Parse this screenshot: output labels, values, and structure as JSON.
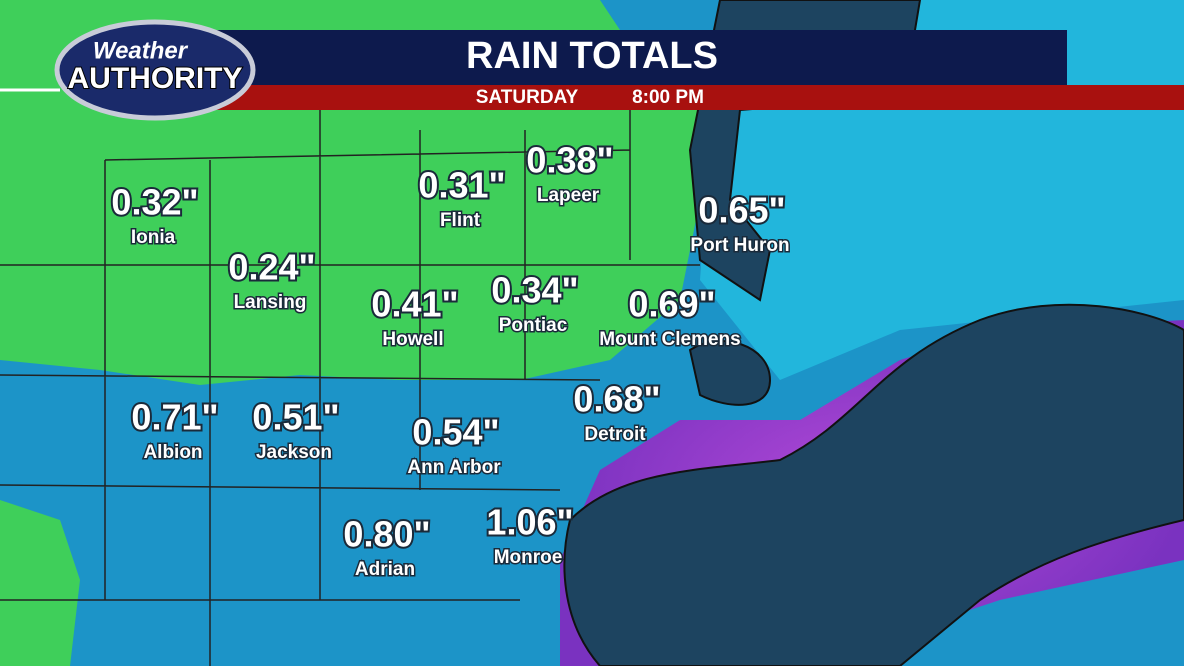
{
  "header": {
    "logo": {
      "line1": "Weather",
      "line2": "AUTHORITY"
    },
    "title": "RAIN TOTALS",
    "day": "SATURDAY",
    "time": "8:00 PM"
  },
  "locations": [
    {
      "amount": "0.32\"",
      "name": "Ionia"
    },
    {
      "amount": "0.24\"",
      "name": "Lansing"
    },
    {
      "amount": "0.31\"",
      "name": "Flint"
    },
    {
      "amount": "0.38\"",
      "name": "Lapeer"
    },
    {
      "amount": "0.65\"",
      "name": "Port Huron"
    },
    {
      "amount": "0.41\"",
      "name": "Howell"
    },
    {
      "amount": "0.34\"",
      "name": "Pontiac"
    },
    {
      "amount": "0.69\"",
      "name": "Mount Clemens"
    },
    {
      "amount": "0.71\"",
      "name": "Albion"
    },
    {
      "amount": "0.51\"",
      "name": "Jackson"
    },
    {
      "amount": "0.54\"",
      "name": "Ann Arbor"
    },
    {
      "amount": "0.68\"",
      "name": "Detroit"
    },
    {
      "amount": "0.80\"",
      "name": "Adrian"
    },
    {
      "amount": "1.06\"",
      "name": "Monroe"
    }
  ]
}
